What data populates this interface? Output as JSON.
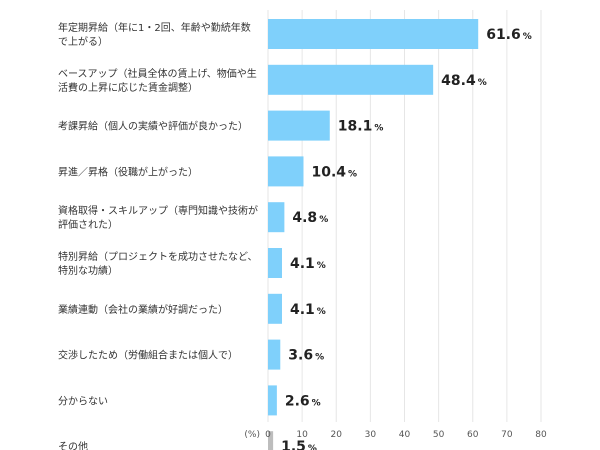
{
  "chart_data": {
    "type": "bar",
    "orientation": "horizontal",
    "categories": [
      [
        "年定期昇給（年に1・2回、年齢や勤続年数",
        "で上がる）"
      ],
      [
        "ベースアップ（社員全体の賃上げ、物価や生",
        "活費の上昇に応じた賃金調整）"
      ],
      [
        "考課昇給（個人の実績や評価が良かった）"
      ],
      [
        "昇進／昇格（役職が上がった）"
      ],
      [
        "資格取得・スキルアップ（専門知識や技術が",
        "評価された）"
      ],
      [
        "特別昇給（プロジェクトを成功させたなど、",
        "特別な功績）"
      ],
      [
        "業績連動（会社の業績が好調だった）"
      ],
      [
        "交渉したため（労働組合または個人で）"
      ],
      [
        "分からない"
      ],
      [
        "その他"
      ]
    ],
    "values": [
      61.6,
      48.4,
      18.1,
      10.4,
      4.8,
      4.1,
      4.1,
      3.6,
      2.6,
      1.5
    ],
    "value_labels": [
      "61.6",
      "48.4",
      "18.1",
      "10.4",
      "4.8",
      "4.1",
      "4.1",
      "3.6",
      "2.6",
      "1.5"
    ],
    "value_suffix": "%",
    "bar_colors": [
      "#7fd0fb",
      "#7fd0fb",
      "#7fd0fb",
      "#7fd0fb",
      "#7fd0fb",
      "#7fd0fb",
      "#7fd0fb",
      "#7fd0fb",
      "#7fd0fb",
      "#bdbdbd"
    ],
    "xlim": [
      0,
      80
    ],
    "xticks": [
      0,
      10,
      20,
      30,
      40,
      50,
      60,
      70,
      80
    ],
    "axis_unit_label": "(%)",
    "grid": true
  }
}
